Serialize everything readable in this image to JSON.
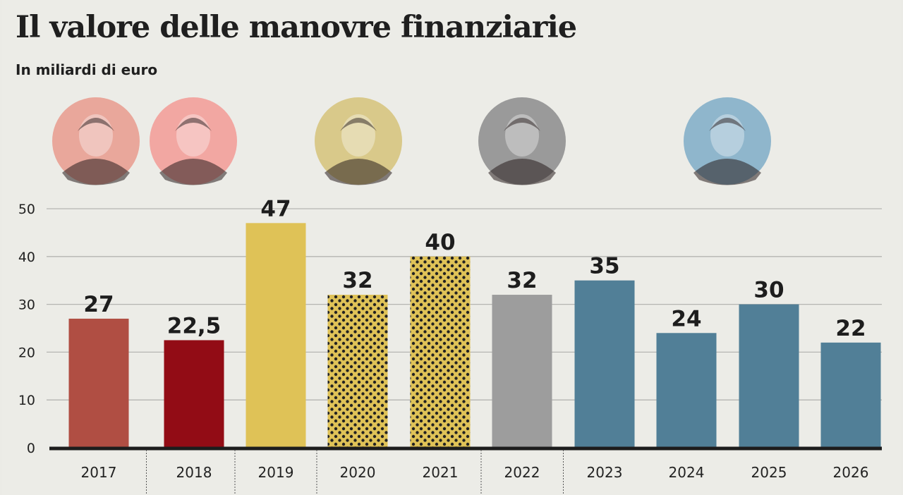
{
  "chart_data": {
    "type": "bar",
    "title": "Il valore delle manovre finanziarie",
    "subtitle": "In miliardi di euro",
    "categories": [
      "2017",
      "2018",
      "2019",
      "2020",
      "2021",
      "2022",
      "2023",
      "2024",
      "2025",
      "2026"
    ],
    "values": [
      27,
      22.5,
      47,
      32,
      40,
      32,
      35,
      24,
      30,
      22
    ],
    "value_labels": [
      "27",
      "22,5",
      "47",
      "32",
      "40",
      "32",
      "35",
      "24",
      "30",
      "22"
    ],
    "colors": [
      "#b04e43",
      "#920c15",
      "#dfc257",
      "#dfc257",
      "#dfc257",
      "#9d9d9d",
      "#517f97",
      "#517f97",
      "#517f97",
      "#517f97"
    ],
    "patterned": [
      false,
      false,
      false,
      true,
      true,
      false,
      false,
      false,
      false,
      false
    ],
    "ylim": [
      0,
      50
    ],
    "yticks": [
      0,
      10,
      20,
      30,
      40,
      50
    ],
    "grid": true,
    "group_dividers_after": [
      "2017",
      "2018",
      "2019",
      "2021",
      "2022"
    ],
    "portraits": [
      {
        "category": "2017",
        "tint": "#e9a79b"
      },
      {
        "category": "2018",
        "tint": "#f2a7a2"
      },
      {
        "category": "2020",
        "tint": "#d9c98a"
      },
      {
        "category": "2022",
        "tint": "#9a9a9a"
      },
      {
        "category": "2024",
        "tint": "#8fb6cc"
      }
    ]
  }
}
